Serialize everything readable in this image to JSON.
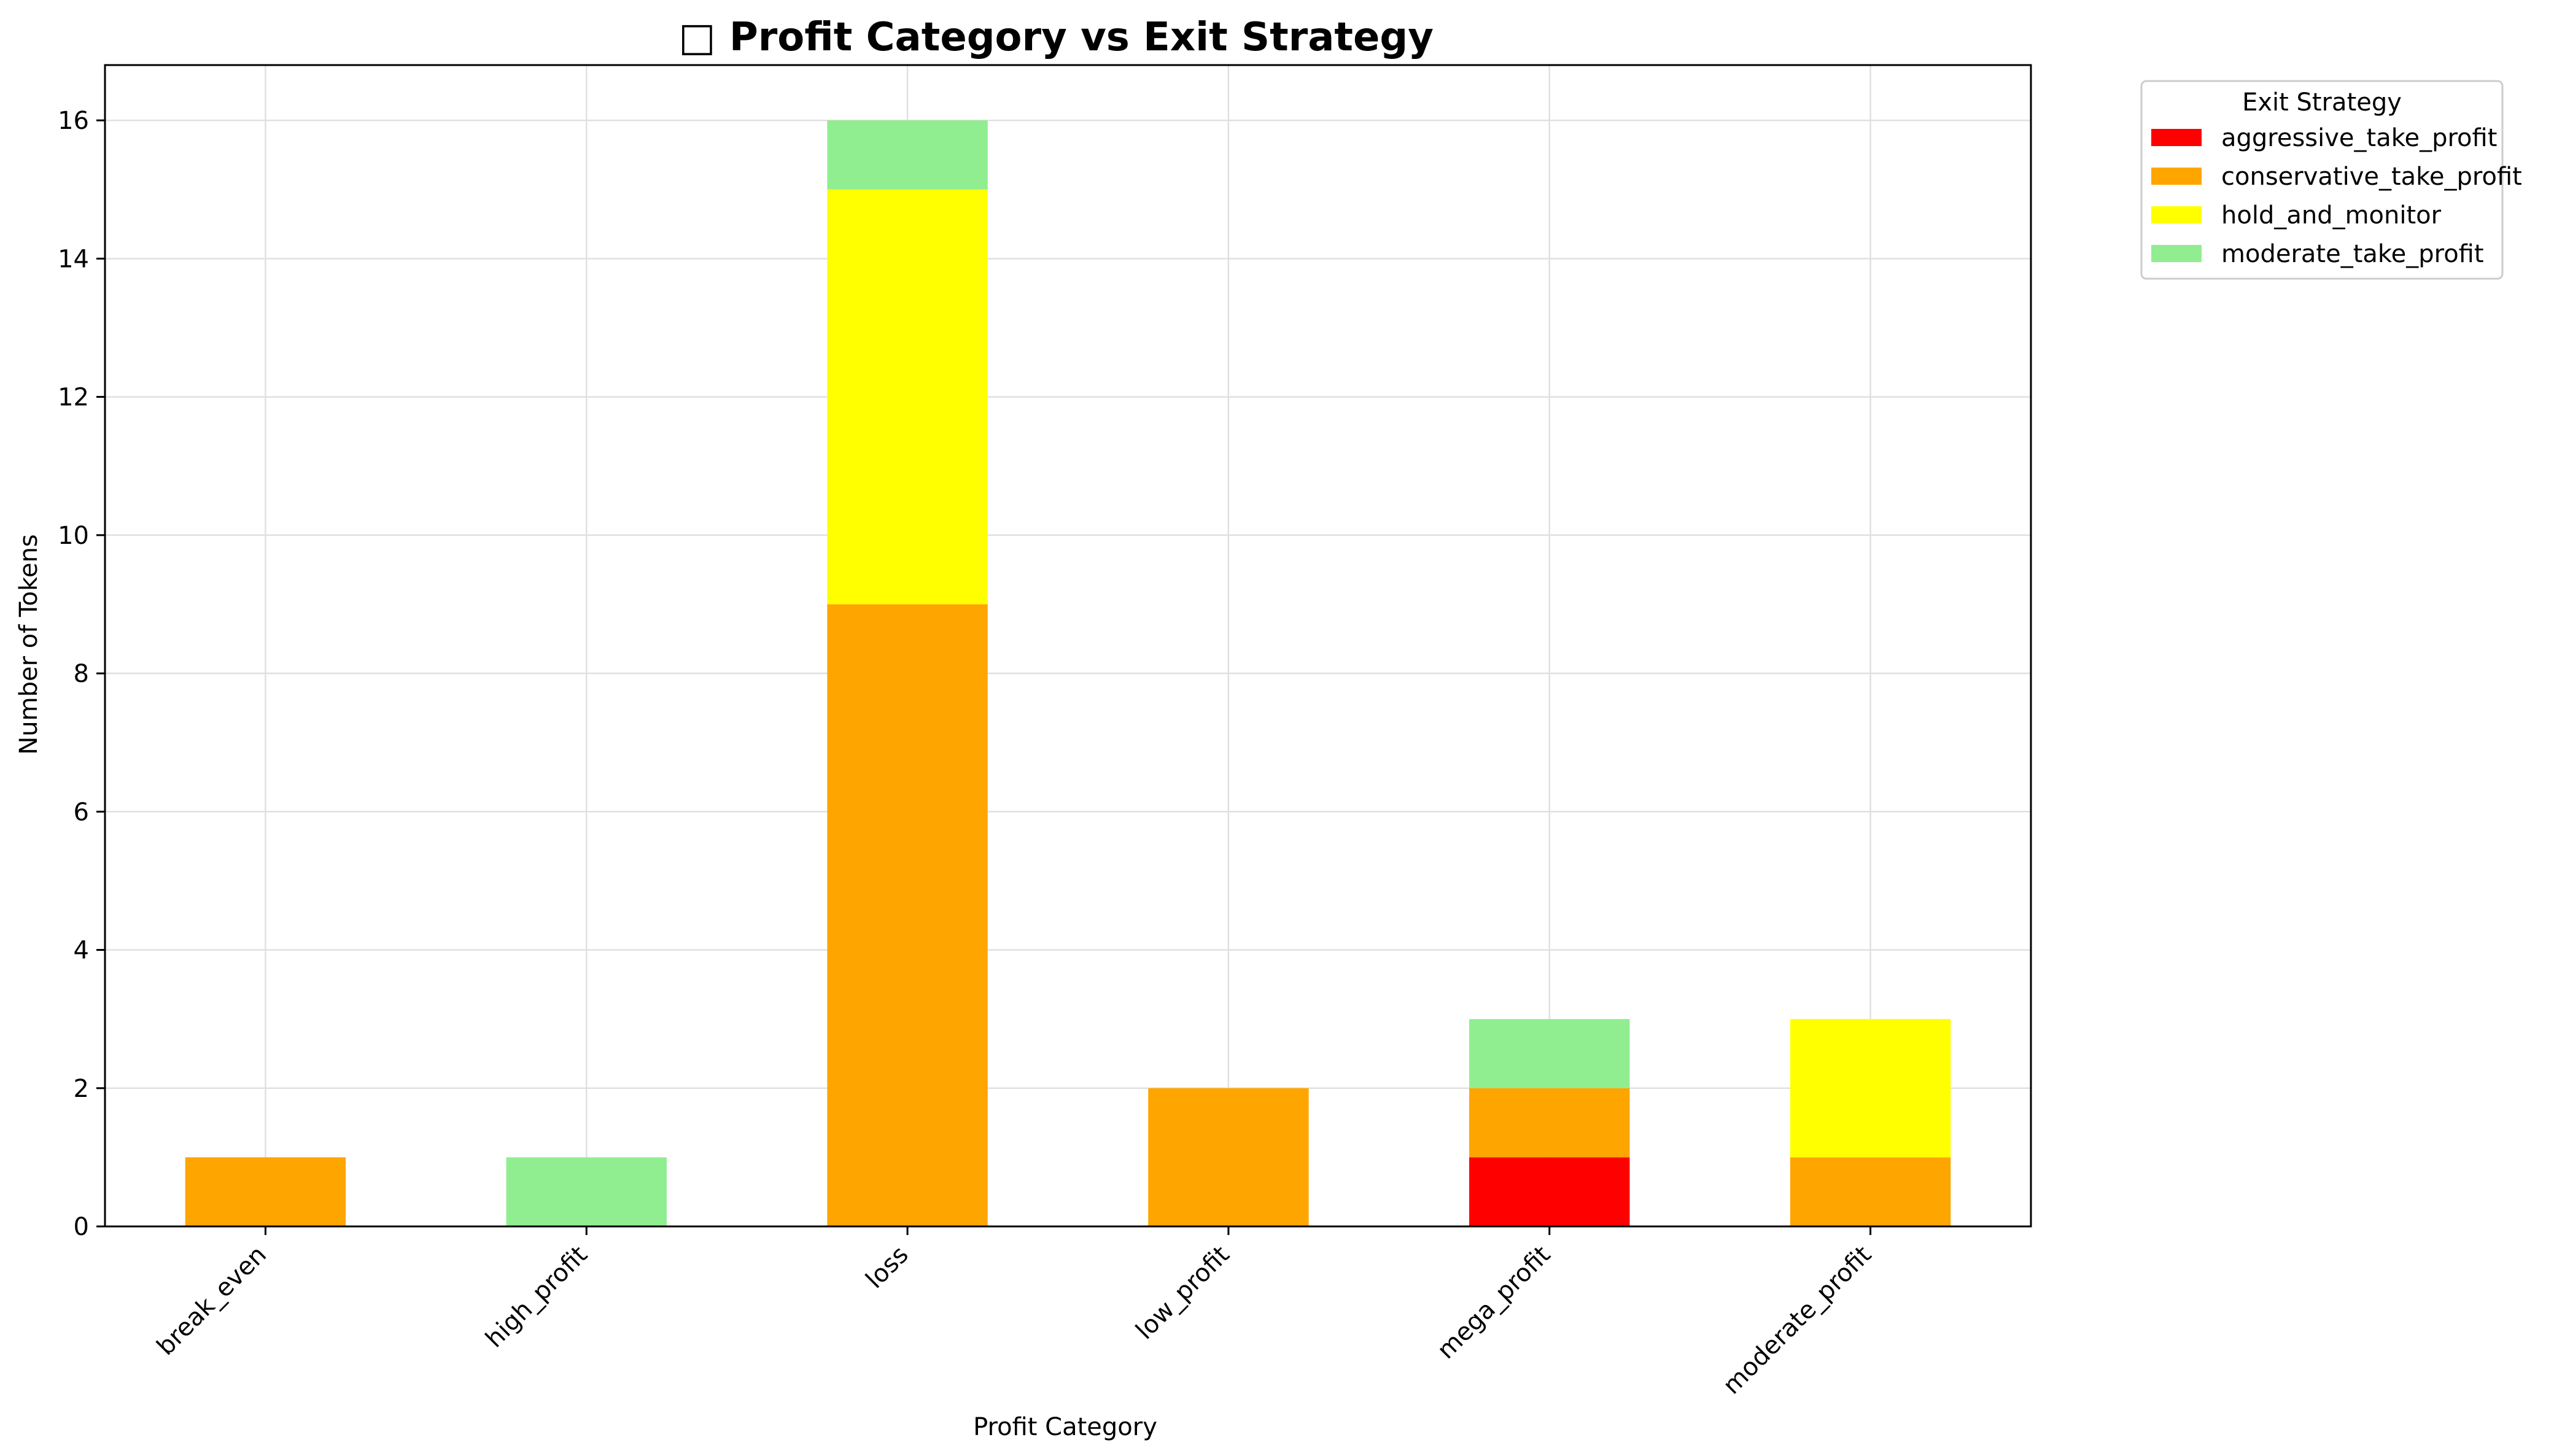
{
  "chart_data": {
    "type": "bar",
    "stacked": true,
    "title": "Profit Category vs Exit Strategy",
    "title_icon": "chart-emoji-icon",
    "xlabel": "Profit Category",
    "ylabel": "Number of Tokens",
    "categories": [
      "break_even",
      "high_profit",
      "loss",
      "low_profit",
      "mega_profit",
      "moderate_profit"
    ],
    "series": [
      {
        "name": "aggressive_take_profit",
        "color": "#ff0000",
        "values": [
          0,
          0,
          0,
          0,
          1,
          0
        ]
      },
      {
        "name": "conservative_take_profit",
        "color": "#ffa500",
        "values": [
          1,
          0,
          9,
          2,
          1,
          1
        ]
      },
      {
        "name": "hold_and_monitor",
        "color": "#ffff00",
        "values": [
          0,
          0,
          6,
          0,
          0,
          2
        ]
      },
      {
        "name": "moderate_take_profit",
        "color": "#90ee90",
        "values": [
          0,
          1,
          1,
          0,
          1,
          0
        ]
      }
    ],
    "ylim": [
      0,
      16.8
    ],
    "yticks": [
      0,
      2,
      4,
      6,
      8,
      10,
      12,
      14,
      16
    ],
    "grid": true,
    "legend": {
      "title": "Exit Strategy",
      "placement": "outside top-right"
    }
  }
}
